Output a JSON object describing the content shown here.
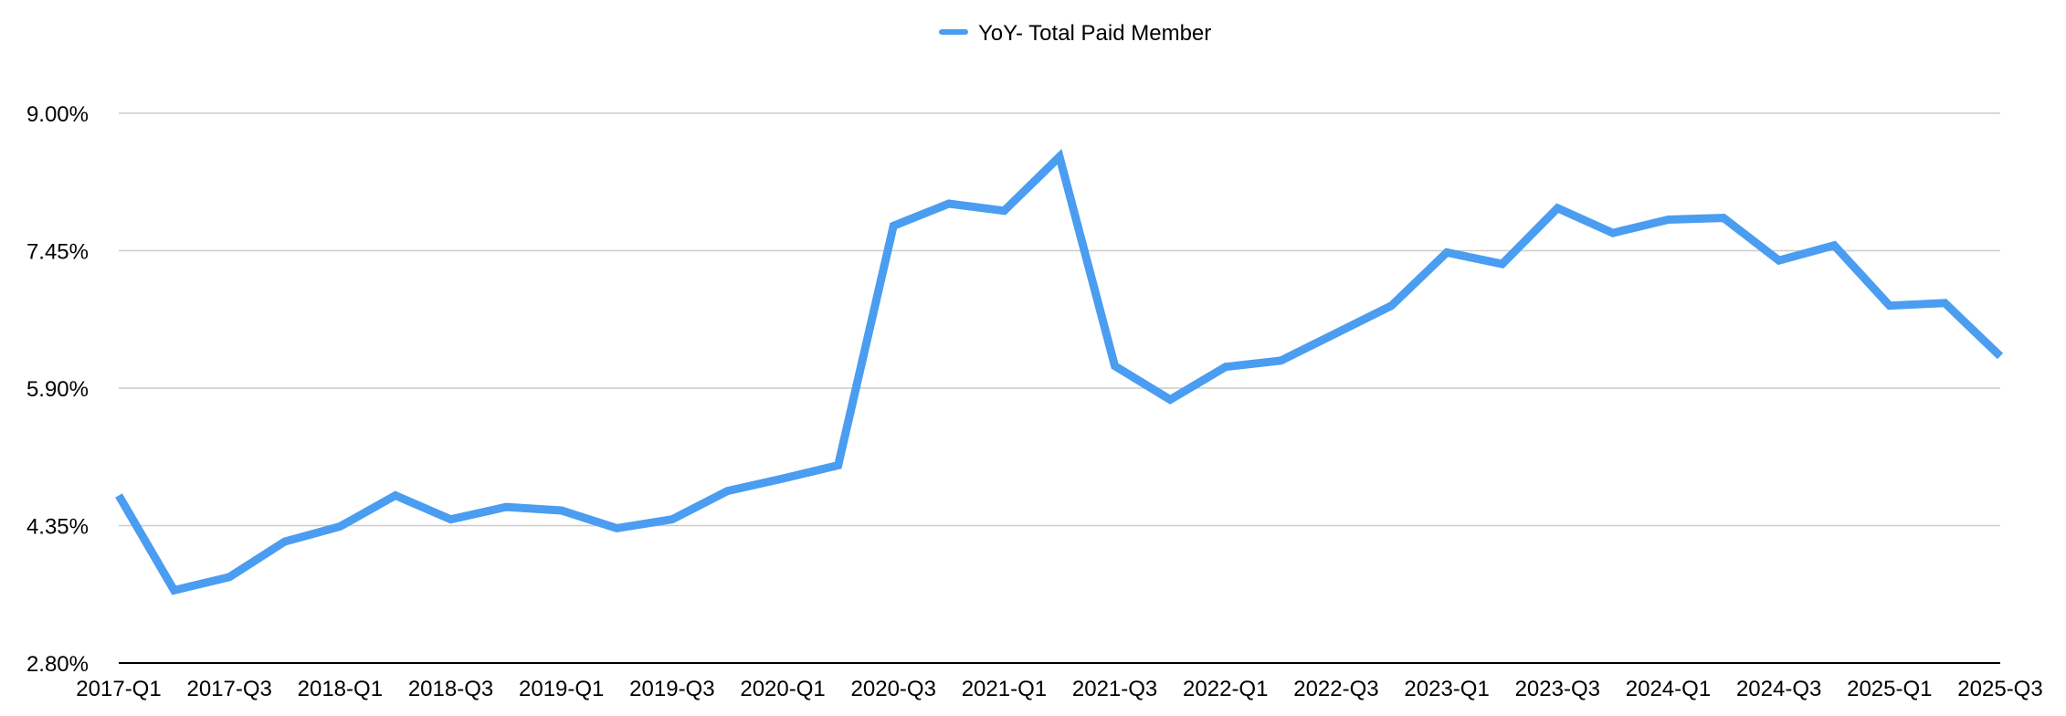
{
  "chart_data": {
    "type": "line",
    "title": "",
    "xlabel": "",
    "ylabel": "",
    "legend": {
      "position": "top-center",
      "entries": [
        "YoY- Total Paid Member"
      ]
    },
    "grid": true,
    "ylim": [
      2.8,
      9.0
    ],
    "y_ticks": [
      "2.80%",
      "4.35%",
      "5.90%",
      "7.45%",
      "9.00%"
    ],
    "y_tick_values": [
      2.8,
      4.35,
      5.9,
      7.45,
      9.0
    ],
    "x_tick_labels": [
      "2017-Q1",
      "2017-Q3",
      "2018-Q1",
      "2018-Q3",
      "2019-Q1",
      "2019-Q3",
      "2020-Q1",
      "2020-Q3",
      "2021-Q1",
      "2021-Q3",
      "2022-Q1",
      "2022-Q3",
      "2023-Q1",
      "2023-Q3",
      "2024-Q1",
      "2024-Q3",
      "2025-Q1",
      "2025-Q3"
    ],
    "categories": [
      "2017-Q1",
      "2017-Q2",
      "2017-Q3",
      "2017-Q4",
      "2018-Q1",
      "2018-Q2",
      "2018-Q3",
      "2018-Q4",
      "2019-Q1",
      "2019-Q2",
      "2019-Q3",
      "2019-Q4",
      "2020-Q1",
      "2020-Q2",
      "2020-Q3",
      "2020-Q4",
      "2021-Q1",
      "2021-Q2",
      "2021-Q3",
      "2021-Q4",
      "2022-Q1",
      "2022-Q2",
      "2022-Q3",
      "2022-Q4",
      "2023-Q1",
      "2023-Q2",
      "2023-Q3",
      "2023-Q4",
      "2024-Q1",
      "2024-Q2",
      "2024-Q3",
      "2024-Q4",
      "2025-Q1",
      "2025-Q2",
      "2025-Q3"
    ],
    "series": [
      {
        "name": "YoY- Total Paid Member",
        "color": "#4a9df0",
        "values": [
          4.69,
          3.62,
          3.77,
          4.17,
          4.34,
          4.69,
          4.42,
          4.56,
          4.52,
          4.32,
          4.42,
          4.74,
          4.88,
          5.03,
          7.73,
          7.98,
          7.9,
          8.51,
          6.15,
          5.77,
          6.14,
          6.21,
          6.52,
          6.83,
          7.43,
          7.3,
          7.93,
          7.65,
          7.8,
          7.82,
          7.34,
          7.51,
          6.83,
          6.86,
          6.26
        ]
      }
    ]
  }
}
